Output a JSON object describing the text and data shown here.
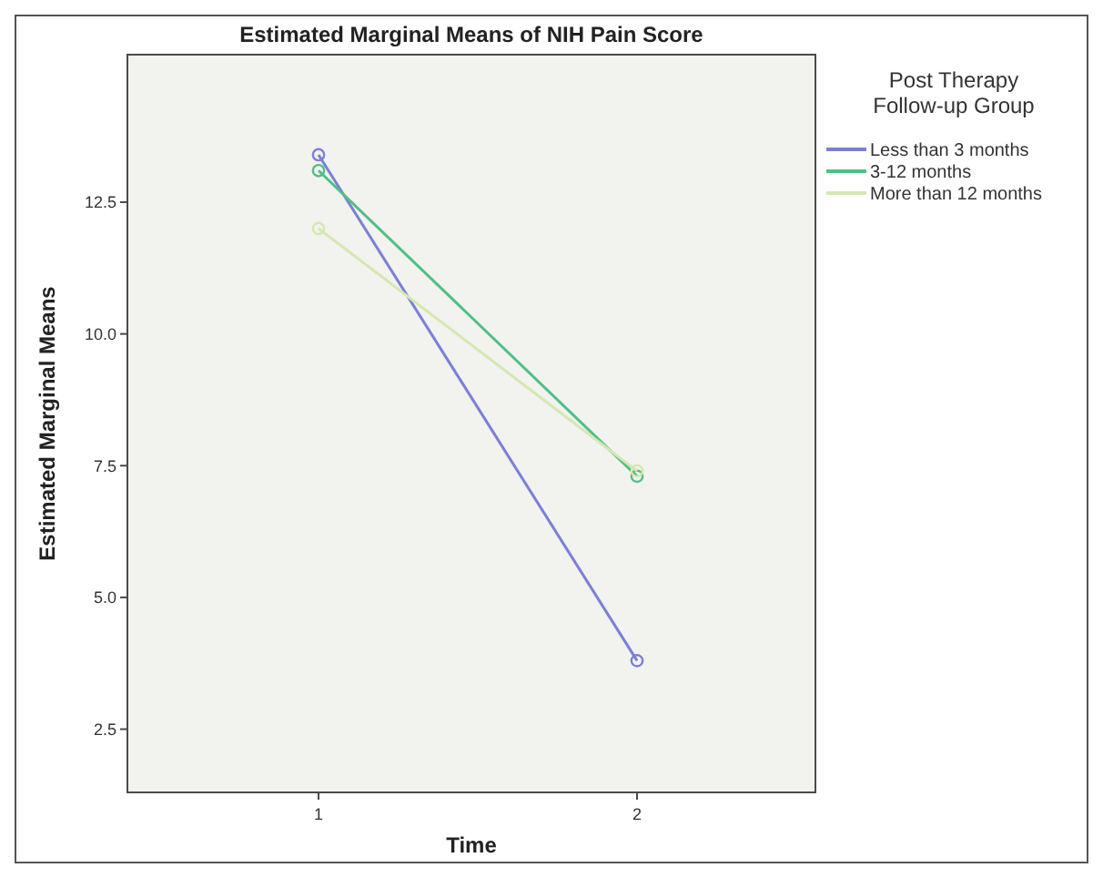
{
  "chart_data": {
    "type": "line",
    "title": "Estimated Marginal Means of NIH Pain Score",
    "xlabel": "Time",
    "ylabel": "Estimated Marginal Means",
    "legend_title": "Post Therapy Follow-up Group",
    "x": [
      1,
      2
    ],
    "xlim": [
      0.4,
      2.56
    ],
    "xticks": [
      1,
      2
    ],
    "ylim": [
      1.3,
      15.3
    ],
    "yticks": [
      {
        "value": 2.5,
        "label": "2.5"
      },
      {
        "value": 5,
        "label": "5.0"
      },
      {
        "value": 7.5,
        "label": "7.5"
      },
      {
        "value": 10,
        "label": "10.0"
      },
      {
        "value": 12.5,
        "label": "12.5"
      }
    ],
    "marker": "circle",
    "legend": "right",
    "grid": false,
    "series": [
      {
        "name": "Less than 3 months",
        "color": "#7b7fd6",
        "values": [
          13.4,
          3.8
        ]
      },
      {
        "name": "3-12 months",
        "color": "#4fbf86",
        "values": [
          13.1,
          7.3
        ]
      },
      {
        "name": "More than 12 months",
        "color": "#d4e8b0",
        "values": [
          12.0,
          7.4
        ]
      }
    ]
  }
}
